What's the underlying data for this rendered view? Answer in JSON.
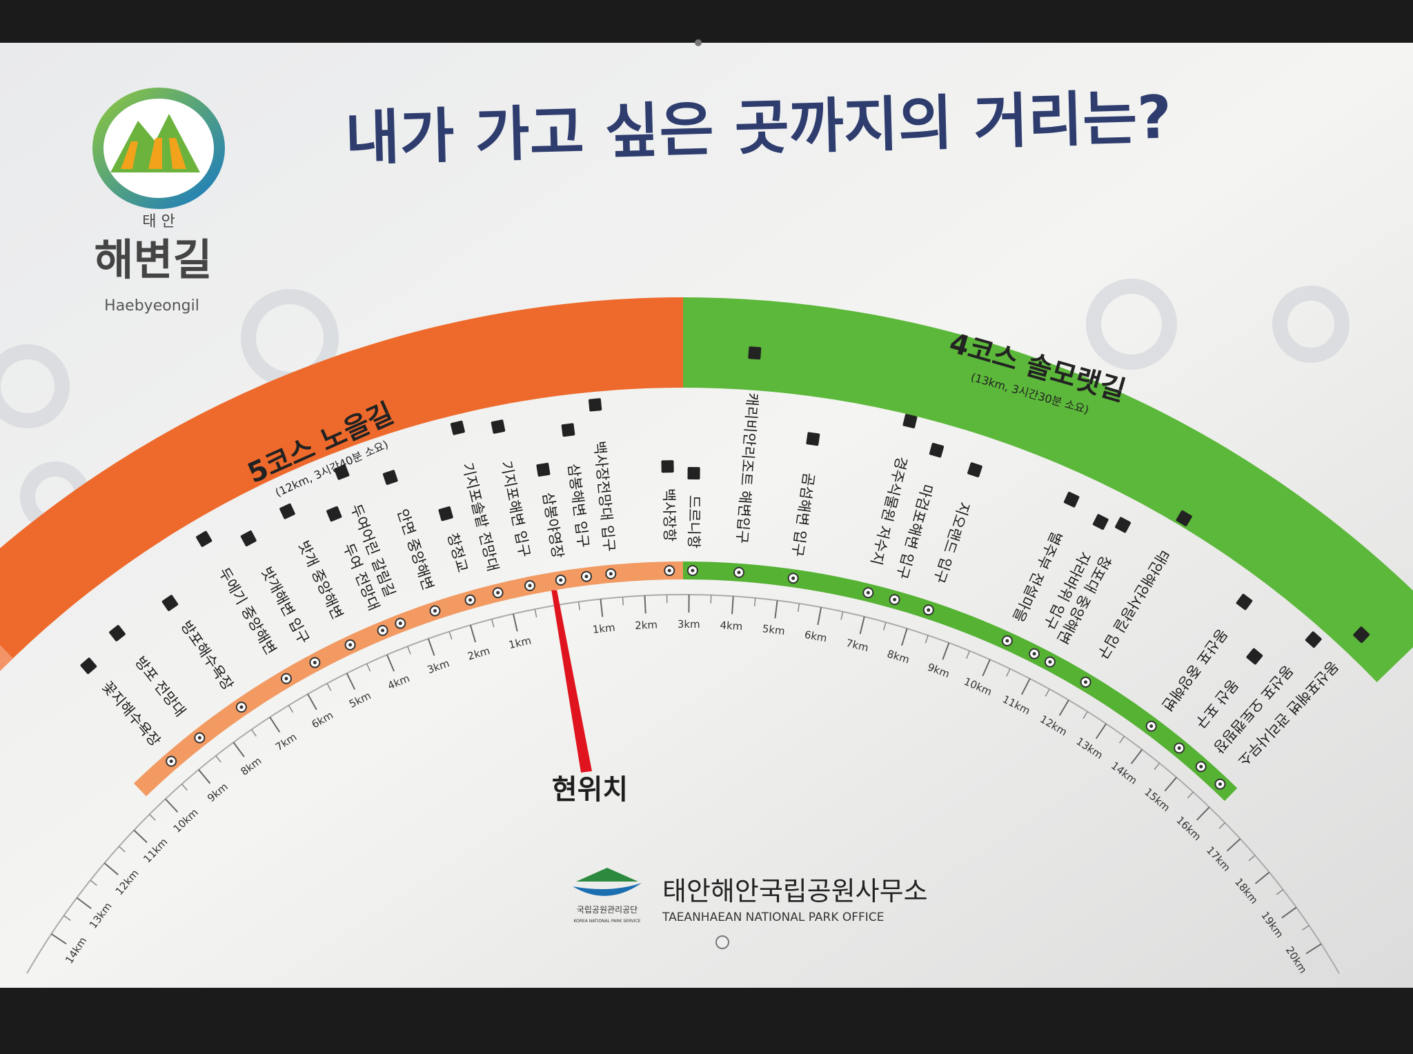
{
  "header": {
    "title": "내가 가고 싶은 곳까지의 거리는?"
  },
  "logo": {
    "region": "태 안",
    "name": "해변길",
    "romanized": "Haebyeongil"
  },
  "courses": [
    {
      "name": "5코스 노을길",
      "info": "(12km, 3시간40분 소요)",
      "stops": [
        "꽃지해수욕장",
        "방포 전망대",
        "방포해수욕장",
        "두에기 중앙해변",
        "밧개해변 입구",
        "밧개 중앙해변",
        "두여 전망대",
        "두여어린 갈림길",
        "안면 중앙해변",
        "창정교",
        "기지포솔밭 전망대",
        "기지포해변 입구",
        "삼봉야영장",
        "삼봉해변 입구",
        "백사장전망대 입구",
        "백사장항"
      ],
      "km": [
        "1km",
        "2km",
        "3km",
        "4km",
        "5km",
        "6km",
        "7km",
        "8km",
        "9km",
        "10km",
        "11km",
        "12km",
        "13km",
        "14km"
      ]
    },
    {
      "name": "4코스 솔모랫길",
      "info": "(13km, 3시간30분 소요)",
      "stops": [
        "드르니항",
        "캐리비안리조트 해변입구",
        "곰섬해변 입구",
        "경주식물원 저수지",
        "마검포해변 입구",
        "지오랜드 입구",
        "별주부 전설마을",
        "자라바위 입구",
        "청포대 중앙해변",
        "태안해안사랑길 입구",
        "몽산포 중앙해변",
        "몽산 포구",
        "몽산포 오토캠핑장",
        "몽산포해변 관리사무소"
      ],
      "km": [
        "1km",
        "2km",
        "3km",
        "4km",
        "5km",
        "6km",
        "7km",
        "8km",
        "9km",
        "10km",
        "11km",
        "12km",
        "13km",
        "14km",
        "15km",
        "16km",
        "17km",
        "18km",
        "19km",
        "20km"
      ]
    }
  ],
  "current_location": "현위치",
  "footer": {
    "agency": "국립공원관리공단",
    "agency_en": "KOREA NATIONAL PARK SERVICE",
    "office": "태안해안국립공원사무소",
    "office_en": "TAEANHAEAN NATIONAL PARK OFFICE"
  }
}
